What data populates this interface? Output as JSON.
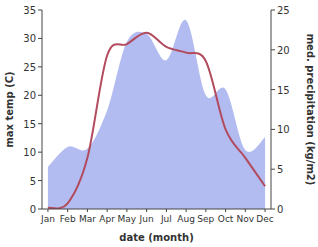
{
  "chart_data": {
    "type": "line",
    "xlabel": "date (month)",
    "ylabel": "max temp (C)",
    "y2label": "med. precipitation (kg/m2)",
    "categories": [
      "Jan",
      "Feb",
      "Mar",
      "Apr",
      "May",
      "Jun",
      "Jul",
      "Aug",
      "Sep",
      "Oct",
      "Nov",
      "Dec"
    ],
    "series": [
      {
        "type": "area",
        "axis": "y2",
        "color": "#b3bcf1",
        "values": [
          5.3,
          7.8,
          7.6,
          12.4,
          21,
          22,
          18.7,
          23.7,
          14.3,
          15,
          7.4,
          9
        ]
      },
      {
        "type": "line",
        "color": "#b24b5e",
        "values": [
          0.2,
          1,
          9,
          27,
          29,
          31,
          28.5,
          27.5,
          26,
          14,
          9,
          4
        ]
      }
    ],
    "ylim": [
      0,
      35
    ],
    "yticks": [
      0,
      5,
      10,
      15,
      20,
      25,
      30,
      35
    ],
    "y2lim": [
      0,
      25
    ],
    "y2ticks": [
      0,
      5,
      10,
      15,
      20,
      25
    ],
    "grid": false
  }
}
